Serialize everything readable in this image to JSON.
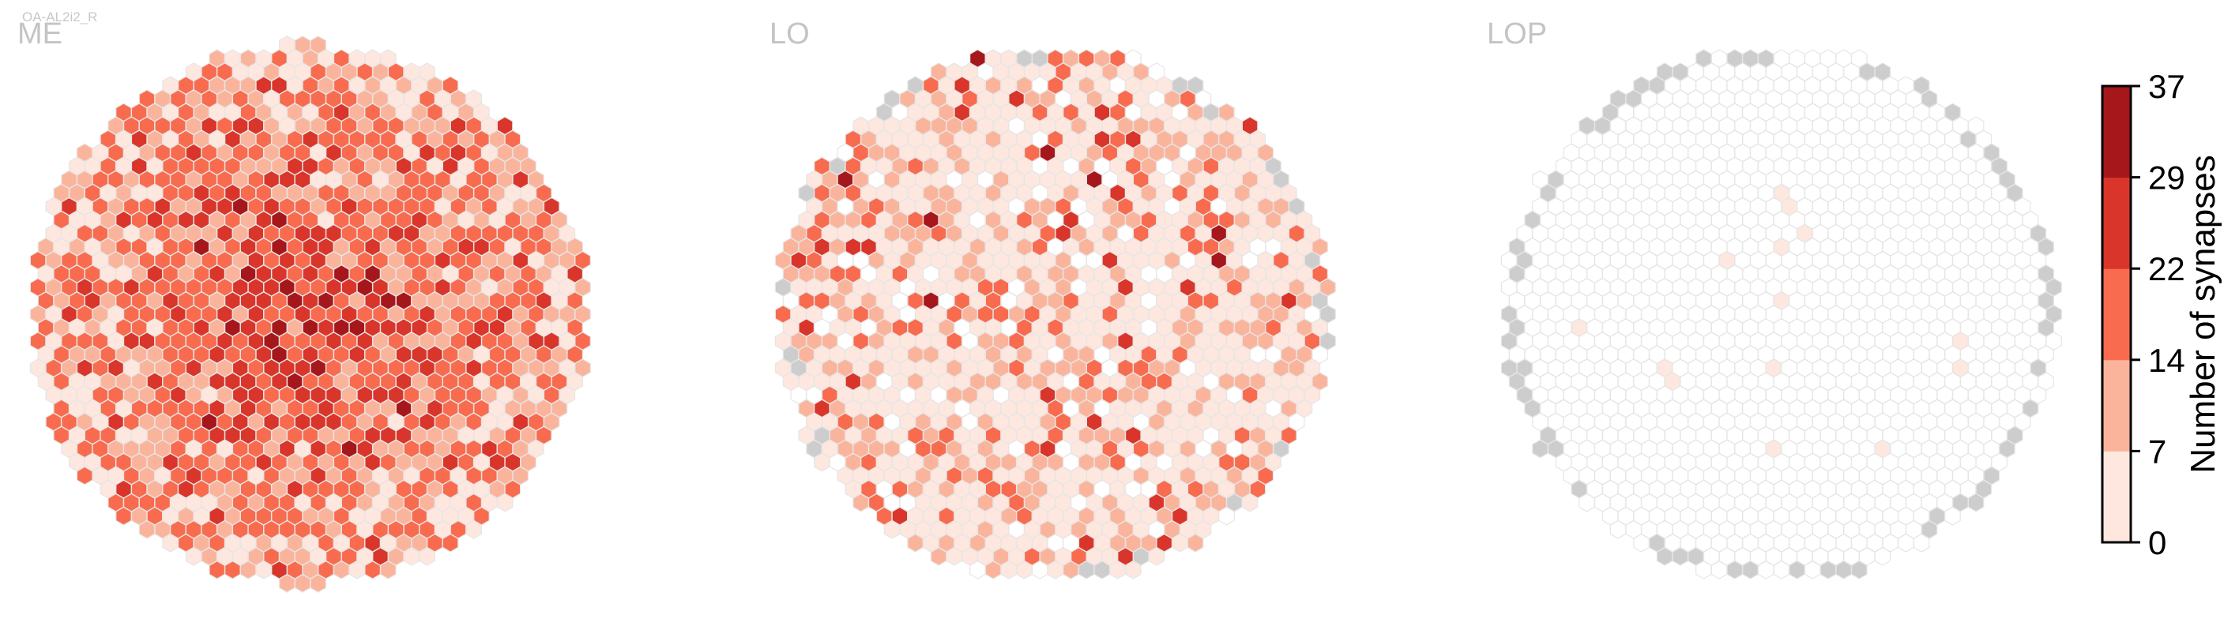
{
  "figure": {
    "cell_type_label": "OA-AL2i2_R",
    "panels": [
      "ME",
      "LO",
      "LOP"
    ]
  },
  "colorbar": {
    "label": "Number of synapses",
    "ticks": [
      "0",
      "7",
      "14",
      "22",
      "29",
      "37"
    ],
    "bin_colors": [
      "#fde7de",
      "#fbb49c",
      "#f96b4e",
      "#d9352a",
      "#a6171c"
    ]
  },
  "colors": {
    "no_data": "#cdcdcd",
    "empty_column": "#ffffff",
    "cell_edge": "#e6e6e6"
  },
  "chart_data": [
    {
      "type": "heatmap",
      "panel": "ME",
      "description_of_values": "per-column synapse counts, hexagonal column grid",
      "value_range": [
        0,
        37
      ],
      "bins": [
        0,
        7,
        14,
        22,
        29,
        37
      ],
      "bin_distribution": {
        "0-7": 0.28,
        "7-14": 0.34,
        "14-22": 0.3,
        "22-29": 0.07,
        "29-37": 0.01
      },
      "max_value": 37,
      "no_data_columns": 0
    },
    {
      "type": "heatmap",
      "panel": "LO",
      "description_of_values": "per-column synapse counts, hexagonal column grid",
      "value_range": [
        0,
        37
      ],
      "bins": [
        0,
        7,
        14,
        22,
        29,
        37
      ],
      "bin_distribution": {
        "0": 0.12,
        "0-7": 0.5,
        "7-14": 0.26,
        "14-22": 0.09,
        "22-29": 0.025,
        "29-37": 0.005
      },
      "max_value": 33,
      "no_data_columns": 16
    },
    {
      "type": "heatmap",
      "panel": "LOP",
      "description_of_values": "per-column synapse counts, hexagonal column grid",
      "value_range": [
        0,
        37
      ],
      "bins": [
        0,
        7,
        14,
        22,
        29,
        37
      ],
      "bin_distribution": {
        "0": 0.98,
        "0-7": 0.02
      },
      "max_value": 2,
      "nonzero_columns": 9,
      "no_data_columns": 45
    }
  ]
}
